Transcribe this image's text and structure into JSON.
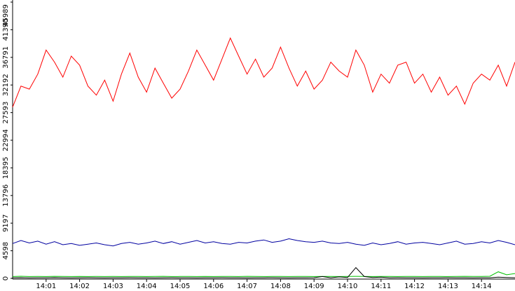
{
  "chart_data": {
    "type": "line",
    "categories": [
      null,
      null,
      null,
      null,
      "14:01",
      null,
      null,
      null,
      "14:02",
      null,
      null,
      null,
      "14:03",
      null,
      null,
      null,
      "14:04",
      null,
      null,
      null,
      "14:05",
      null,
      null,
      null,
      "14:06",
      null,
      null,
      null,
      "14:07",
      null,
      null,
      null,
      "14:08",
      null,
      null,
      null,
      "14:09",
      null,
      null,
      null,
      "14:10",
      null,
      null,
      null,
      "14:11",
      null,
      null,
      null,
      "14:12",
      null,
      null,
      null,
      "14:13",
      null,
      null,
      null,
      "14:14",
      null,
      null,
      null,
      null
    ],
    "series": [
      {
        "name": null,
        "color": "#ff0000",
        "values": [
          28500,
          32000,
          31500,
          34000,
          38000,
          36000,
          33500,
          37000,
          35500,
          32000,
          30500,
          33000,
          29500,
          34000,
          37500,
          33500,
          31000,
          35000,
          32500,
          30000,
          31500,
          34500,
          38000,
          35500,
          33000,
          36500,
          40000,
          37000,
          34000,
          36500,
          33500,
          35000,
          38500,
          35000,
          32000,
          34500,
          31500,
          33000,
          36000,
          34500,
          33500,
          38000,
          35500,
          31000,
          34000,
          32500,
          35500,
          36000,
          32500,
          34000,
          31000,
          33500,
          30500,
          32000,
          29000,
          32500,
          34000,
          33000,
          35500,
          32000,
          36000
        ]
      },
      {
        "name": null,
        "color": "#0000a0",
        "values": [
          5800,
          6300,
          5900,
          6200,
          5700,
          6100,
          5600,
          5800,
          5500,
          5700,
          5900,
          5600,
          5400,
          5800,
          6000,
          5700,
          5900,
          6200,
          5800,
          6100,
          5700,
          6000,
          6300,
          5900,
          6100,
          5800,
          5700,
          6000,
          5900,
          6200,
          6400,
          6000,
          6200,
          6600,
          6300,
          6100,
          6000,
          6200,
          5900,
          5800,
          6000,
          5700,
          5500,
          5900,
          5600,
          5800,
          6100,
          5700,
          5900,
          6000,
          5800,
          5600,
          5900,
          6200,
          5700,
          5800,
          6100,
          5900,
          6300,
          6000,
          5600
        ]
      },
      {
        "name": null,
        "color": "#00c000",
        "values": [
          300,
          350,
          300,
          320,
          300,
          340,
          310,
          300,
          330,
          300,
          320,
          300,
          310,
          300,
          330,
          320,
          300,
          310,
          340,
          300,
          320,
          310,
          300,
          330,
          300,
          320,
          310,
          300,
          340,
          320,
          300,
          310,
          330,
          300,
          320,
          310,
          300,
          320,
          330,
          300,
          310,
          340,
          320,
          300,
          310,
          330,
          300,
          320,
          310,
          300,
          330,
          320,
          300,
          310,
          340,
          320,
          330,
          350,
          1100,
          600,
          800
        ]
      },
      {
        "name": null,
        "color": "#000000",
        "values": [
          100,
          120,
          90,
          110,
          100,
          130,
          100,
          90,
          110,
          120,
          100,
          90,
          110,
          100,
          120,
          100,
          110,
          90,
          100,
          120,
          110,
          100,
          90,
          110,
          100,
          120,
          100,
          110,
          90,
          100,
          110,
          120,
          100,
          90,
          110,
          100,
          120,
          300,
          100,
          250,
          150,
          1800,
          300,
          150,
          200,
          100,
          120,
          110,
          100,
          90,
          110,
          100,
          120,
          110,
          100,
          90,
          110,
          100,
          200,
          150,
          100
        ]
      }
    ],
    "ylim": [
      0,
      45989
    ],
    "yticks": [
      0,
      4598,
      9197,
      13796,
      18395,
      22994,
      27593,
      32192,
      36791,
      41390,
      45989
    ]
  }
}
